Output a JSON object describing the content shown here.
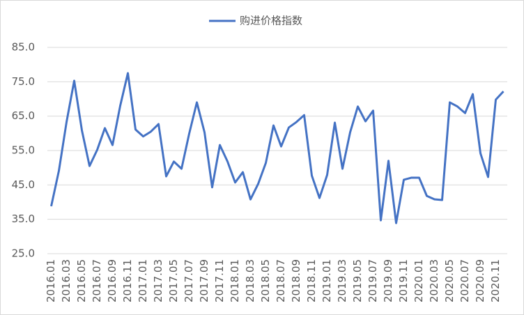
{
  "chart_data": {
    "type": "line",
    "categories": [
      "2016.01",
      null,
      "2016.03",
      null,
      "2016.05",
      null,
      "2016.07",
      null,
      "2016.09",
      null,
      "2016.11",
      null,
      "2017.01",
      null,
      "2017.03",
      null,
      "2017.05",
      null,
      "2017.07",
      null,
      "2017.09",
      null,
      "2017.11",
      null,
      "2018.01",
      null,
      "2018.03",
      null,
      "2018.05",
      null,
      "2018.07",
      null,
      "2018.09",
      null,
      "2018.11",
      null,
      "2019.01",
      null,
      "2019.03",
      null,
      "2019.05",
      null,
      "2019.07",
      null,
      "2019.09",
      null,
      "2019.11",
      null,
      "2020.01",
      null,
      "2020.03",
      null,
      "2020.05",
      null,
      "2020.07",
      null,
      "2020.09",
      null,
      "2020.11",
      null
    ],
    "series": [
      {
        "name": "购进价格指数",
        "color": "#4472c4",
        "values": [
          38.8,
          49.1,
          63.3,
          75.3,
          60.9,
          50.5,
          55.2,
          61.5,
          56.6,
          68.0,
          77.5,
          61.1,
          59.1,
          60.5,
          62.7,
          47.5,
          51.8,
          49.7,
          59.9,
          69.0,
          60.3,
          44.3,
          56.6,
          51.8,
          45.7,
          48.7,
          40.8,
          45.3,
          51.4,
          62.3,
          56.2,
          61.7,
          63.3,
          65.3,
          47.7,
          41.2,
          47.9,
          63.1,
          49.7,
          60.3,
          67.8,
          63.5,
          66.6,
          34.7,
          52.0,
          33.9,
          46.5,
          47.1,
          47.1,
          41.8,
          40.8,
          40.6,
          69.0,
          67.8,
          65.9,
          71.4,
          54.2,
          47.3,
          69.8,
          72.2
        ]
      }
    ],
    "ylim": [
      25,
      85
    ],
    "yticks": [
      {
        "value": 25,
        "label": "25.0"
      },
      {
        "value": 35,
        "label": "35.0"
      },
      {
        "value": 45,
        "label": "45.0"
      },
      {
        "value": 55,
        "label": "55.0"
      },
      {
        "value": 65,
        "label": "65.0"
      },
      {
        "value": 75,
        "label": "75.0"
      },
      {
        "value": 85,
        "label": "85.0"
      }
    ],
    "grid": true,
    "legend": "top"
  }
}
